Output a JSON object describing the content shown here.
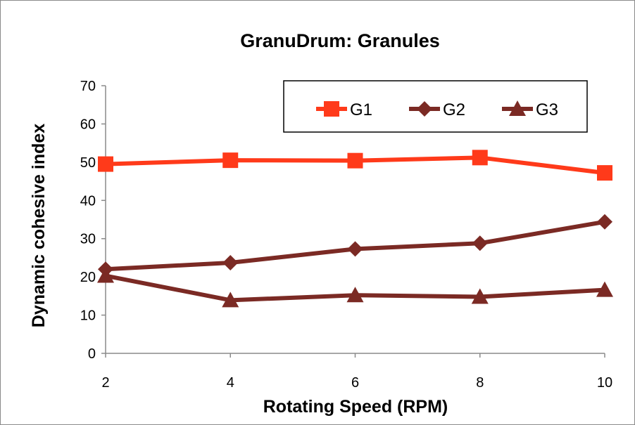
{
  "chart_data": {
    "type": "line",
    "title": "GranuDrum: Granules",
    "xlabel": "Rotating Speed (RPM)",
    "ylabel": "Dynamic cohesive index",
    "x": [
      2,
      4,
      6,
      8,
      10
    ],
    "xlim": [
      2,
      10
    ],
    "ylim": [
      0,
      70
    ],
    "yticks": [
      0,
      10,
      20,
      30,
      40,
      50,
      60,
      70
    ],
    "xticks": [
      2,
      4,
      6,
      8,
      10
    ],
    "grid": false,
    "legend_position": "top-right",
    "series": [
      {
        "name": "G1",
        "marker": "square",
        "color": "#ff3a1a",
        "values": [
          49.5,
          50.5,
          50.4,
          51.2,
          47.2
        ]
      },
      {
        "name": "G2",
        "marker": "diamond",
        "color": "#7b2a24",
        "values": [
          22.0,
          23.7,
          27.3,
          28.8,
          34.4
        ]
      },
      {
        "name": "G3",
        "marker": "triangle",
        "color": "#7b2a24",
        "values": [
          20.3,
          13.9,
          15.2,
          14.8,
          16.6
        ]
      }
    ]
  }
}
